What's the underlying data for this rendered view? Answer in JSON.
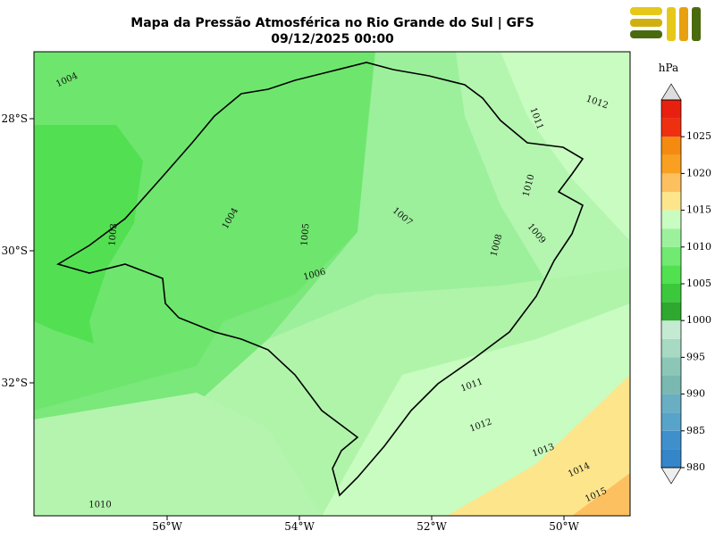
{
  "header": {
    "title": "Mapa da Pressão Atmosférica no Rio Grande do Sul | GFS",
    "subtitle": "09/12/2025 00:00"
  },
  "map": {
    "x_ticks": [
      "56°W",
      "54°W",
      "52°W",
      "50°W"
    ],
    "y_ticks": [
      "28°S",
      "30°S",
      "32°S"
    ],
    "contour_labels": [
      1004,
      1012,
      1011,
      1010,
      1004,
      1003,
      1005,
      1007,
      1009,
      1008,
      1006,
      1011,
      1012,
      1013,
      1014,
      1015,
      1010
    ]
  },
  "colorbar": {
    "unit": "hPa",
    "clim": [
      980,
      1030
    ],
    "levels": [
      980,
      982.5,
      985,
      987.5,
      990,
      992.5,
      995,
      997.5,
      1000,
      1002.5,
      1005,
      1007.5,
      1010,
      1012.5,
      1015,
      1017.5,
      1020,
      1022.5,
      1025,
      1027.5,
      1030
    ],
    "colors": [
      "#3585c9",
      "#3f8fcc",
      "#58a3c9",
      "#6aaec4",
      "#7ab8b2",
      "#8cc6b6",
      "#a8d9c2",
      "#c4ead2",
      "#2ea82e",
      "#3cc83c",
      "#50e050",
      "#70ea70",
      "#9cf29c",
      "#c8fcc0",
      "#fde58c",
      "#fdc060",
      "#f9a020",
      "#f58a10",
      "#ef3010",
      "#e82010"
    ],
    "ticks": [
      980,
      985,
      990,
      995,
      1000,
      1005,
      1010,
      1015,
      1020,
      1025
    ]
  }
}
